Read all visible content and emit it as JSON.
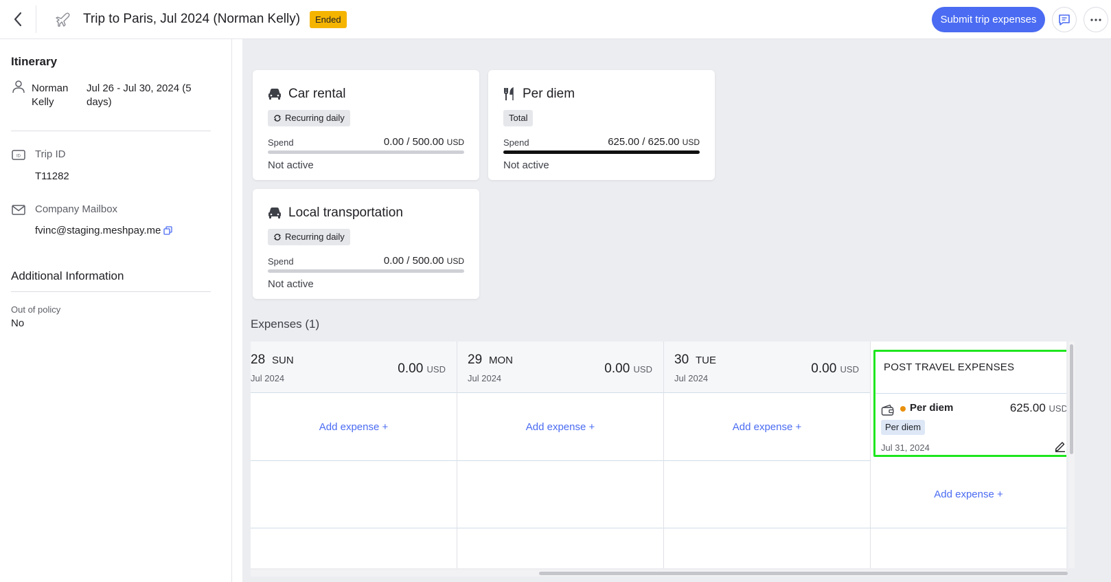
{
  "header": {
    "title": "Trip to Paris, Jul 2024 (Norman Kelly)",
    "status": "Ended",
    "submit_label": "Submit trip expenses"
  },
  "sidebar": {
    "itinerary_heading": "Itinerary",
    "traveler_name": "Norman Kelly",
    "dates": "Jul 26 - Jul 30, 2024 (5 days)",
    "trip_id_label": "Trip ID",
    "trip_id_value": "T11282",
    "mailbox_label": "Company Mailbox",
    "mailbox_value": "fvinc@staging.meshpay.me",
    "additional_heading": "Additional Information",
    "out_of_policy_label": "Out of policy",
    "out_of_policy_value": "No"
  },
  "budgets": [
    {
      "title": "Car rental",
      "chip": "Recurring daily",
      "spend_label": "Spend",
      "spend_value": "0.00 / 500.00",
      "currency": "USD",
      "status": "Not active",
      "progress": 0
    },
    {
      "title": "Per diem",
      "chip": "Total",
      "spend_label": "Spend",
      "spend_value": "625.00 / 625.00",
      "currency": "USD",
      "status": "Not active",
      "progress": 1
    },
    {
      "title": "Local transportation",
      "chip": "Recurring daily",
      "spend_label": "Spend",
      "spend_value": "0.00 / 500.00",
      "currency": "USD",
      "status": "Not active",
      "progress": 0
    }
  ],
  "expenses": {
    "heading": "Expenses (1)",
    "add_label": "Add expense +",
    "days": [
      {
        "num": "28",
        "name": "SUN",
        "month": "Jul 2024",
        "total": "0.00",
        "currency": "USD"
      },
      {
        "num": "29",
        "name": "MON",
        "month": "Jul 2024",
        "total": "0.00",
        "currency": "USD"
      },
      {
        "num": "30",
        "name": "TUE",
        "month": "Jul 2024",
        "total": "0.00",
        "currency": "USD"
      }
    ],
    "post_travel": {
      "title": "POST TRAVEL EXPENSES",
      "item": {
        "name": "Per diem",
        "amount": "625.00",
        "currency": "USD",
        "category": "Per diem",
        "date": "Jul 31, 2024"
      }
    }
  },
  "colors": {
    "accent": "#4a6bf2",
    "status_badge": "#f5b400",
    "highlight": "#1ee61e",
    "dot": "#e8900c"
  }
}
